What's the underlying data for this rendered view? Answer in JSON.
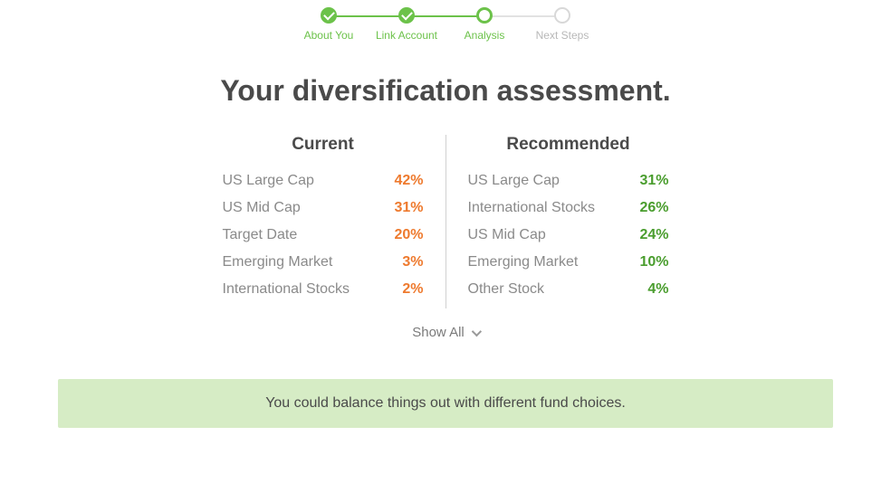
{
  "colors": {
    "brand_green": "#6cc24a",
    "value_green": "#4a9d2e",
    "value_orange": "#ee7a2e",
    "banner_bg": "#d6ecc5",
    "text_heading": "#4a4a4a",
    "text_muted": "#8a8a8a",
    "divider": "#d0d0d0",
    "pending_gray": "#d8d8d8"
  },
  "stepper": {
    "steps": [
      {
        "label": "About You",
        "state": "done"
      },
      {
        "label": "Link Account",
        "state": "done"
      },
      {
        "label": "Analysis",
        "state": "active"
      },
      {
        "label": "Next Steps",
        "state": "pending"
      }
    ]
  },
  "heading": "Your diversification assessment.",
  "comparison": {
    "current": {
      "title": "Current",
      "value_color": "#ee7a2e",
      "rows": [
        {
          "label": "US Large Cap",
          "value": "42%"
        },
        {
          "label": "US Mid Cap",
          "value": "31%"
        },
        {
          "label": "Target Date",
          "value": "20%"
        },
        {
          "label": "Emerging Market",
          "value": "3%"
        },
        {
          "label": "International Stocks",
          "value": "2%"
        }
      ]
    },
    "recommended": {
      "title": "Recommended",
      "value_color": "#4a9d2e",
      "rows": [
        {
          "label": "US Large Cap",
          "value": "31%"
        },
        {
          "label": "International Stocks",
          "value": "26%"
        },
        {
          "label": "US Mid Cap",
          "value": "24%"
        },
        {
          "label": "Emerging Market",
          "value": "10%"
        },
        {
          "label": "Other Stock",
          "value": "4%"
        }
      ]
    }
  },
  "show_all": {
    "label": "Show All"
  },
  "banner": {
    "text": "You could balance things out with different fund choices."
  }
}
